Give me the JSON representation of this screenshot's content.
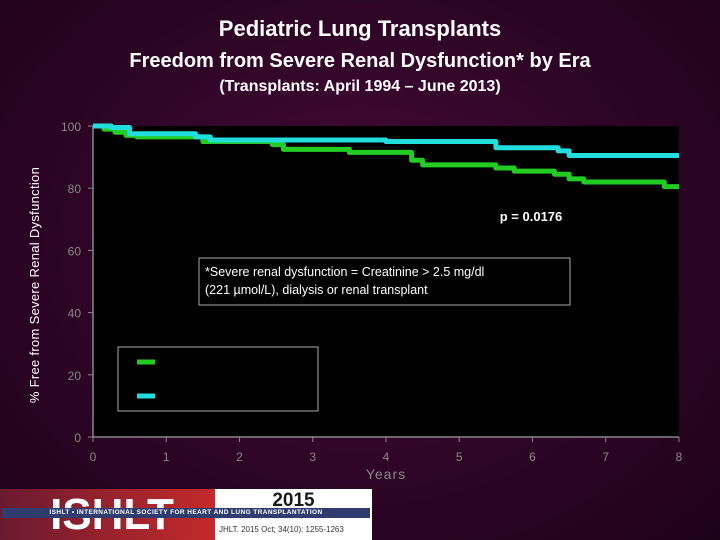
{
  "header": {
    "title": "Pediatric Lung Transplants",
    "subtitle": "Freedom from Severe Renal Dysfunction* by Era",
    "range": "(Transplants: April 1994 – June 2013)"
  },
  "chart_data": {
    "type": "line",
    "xlabel": "Years",
    "ylabel": "% Free from Severe Renal Dysfunction",
    "xlim": [
      0,
      8
    ],
    "ylim": [
      0,
      100
    ],
    "x_ticks": [
      "0",
      "1",
      "2",
      "3",
      "4",
      "5",
      "6",
      "7",
      "8"
    ],
    "y_ticks": [
      "0",
      "20",
      "40",
      "60",
      "80",
      "100"
    ],
    "grid": false,
    "series": [
      {
        "color": "#22cc22",
        "x": [
          0,
          0.15,
          0.3,
          0.45,
          0.6,
          1.0,
          1.5,
          2.0,
          2.45,
          2.6,
          3.0,
          3.5,
          4.0,
          4.35,
          4.5,
          5.0,
          5.35,
          5.5,
          5.75,
          6.0,
          6.3,
          6.5,
          6.7,
          7.0,
          7.5,
          7.8,
          8.0
        ],
        "y": [
          100,
          99,
          98,
          97,
          96.5,
          96.5,
          95,
          95,
          94,
          92.5,
          92.5,
          91.5,
          91.5,
          89,
          87.5,
          87.5,
          87.5,
          86.5,
          85.5,
          85.5,
          84.5,
          83,
          82,
          82,
          82,
          80.5,
          80.5
        ]
      },
      {
        "color": "#22dddd",
        "x": [
          0,
          0.25,
          0.5,
          1.0,
          1.4,
          1.6,
          2.0,
          3.0,
          4.0,
          5.0,
          5.5,
          6.0,
          6.35,
          6.5,
          7.0,
          8.0
        ],
        "y": [
          100,
          99.5,
          97.5,
          97.5,
          96.5,
          95.5,
          95.5,
          95.5,
          95,
          95,
          93,
          93,
          92,
          90.5,
          90.5,
          90.5
        ]
      }
    ],
    "annotations": {
      "pvalue": "p = 0.0176",
      "footnote_line1": "*Severe renal dysfunction = Creatinine > 2.5 mg/dl",
      "footnote_line2": "(221 µmol/L), dialysis or renal transplant"
    }
  },
  "footer": {
    "logo_text": "ISHLT",
    "org_name": "ISHLT • INTERNATIONAL SOCIETY FOR HEART AND LUNG TRANSPLANTATION",
    "year": "2015",
    "citation": "JHLT. 2015 Oct; 34(10): 1255-1263"
  }
}
